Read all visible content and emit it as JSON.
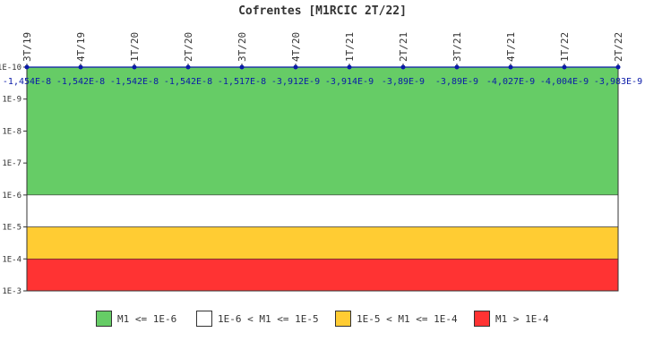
{
  "chart_data": {
    "type": "line",
    "title": "Cofrentes [M1RCIC 2T/22]",
    "x": [
      "3T/19",
      "4T/19",
      "1T/20",
      "2T/20",
      "3T/20",
      "4T/20",
      "1T/21",
      "2T/21",
      "3T/21",
      "4T/21",
      "1T/22",
      "2T/22"
    ],
    "series": [
      {
        "values": [
          -1.454e-08,
          -1.542e-08,
          -1.542e-08,
          -1.542e-08,
          -1.517e-08,
          -3.912e-09,
          -3.914e-09,
          -3.89e-09,
          -3.89e-09,
          -4.027e-09,
          -4.004e-09,
          -3.983e-09
        ],
        "labels": [
          "-1,454E-8",
          "-1,542E-8",
          "-1,542E-8",
          "-1,542E-8",
          "-1,517E-8",
          "-3,912E-9",
          "-3,914E-9",
          "-3,89E-9",
          "-3,89E-9",
          "-4,027E-9",
          "-4,004E-9",
          "-3,983E-9"
        ],
        "color": "#0a1aa8"
      }
    ],
    "y_scale": "log",
    "y_ticks": [
      "1E-10",
      "1E-9",
      "1E-8",
      "1E-7",
      "1E-6",
      "1E-5",
      "1E-4",
      "1E-3"
    ],
    "ylim": [
      1e-10,
      0.001
    ],
    "bands": [
      {
        "from": 1e-10,
        "to": 1e-06,
        "color": "#66cc66",
        "label": "M1 <= 1E-6"
      },
      {
        "from": 1e-06,
        "to": 1e-05,
        "color": "#ffffff",
        "label": "1E-6 < M1 <= 1E-5"
      },
      {
        "from": 1e-05,
        "to": 0.0001,
        "color": "#ffcc33",
        "label": "1E-5 < M1 <= 1E-4"
      },
      {
        "from": 0.0001,
        "to": 0.001,
        "color": "#ff3333",
        "label": "M1 > 1E-4"
      }
    ],
    "legend_position": "bottom",
    "grid": false
  }
}
